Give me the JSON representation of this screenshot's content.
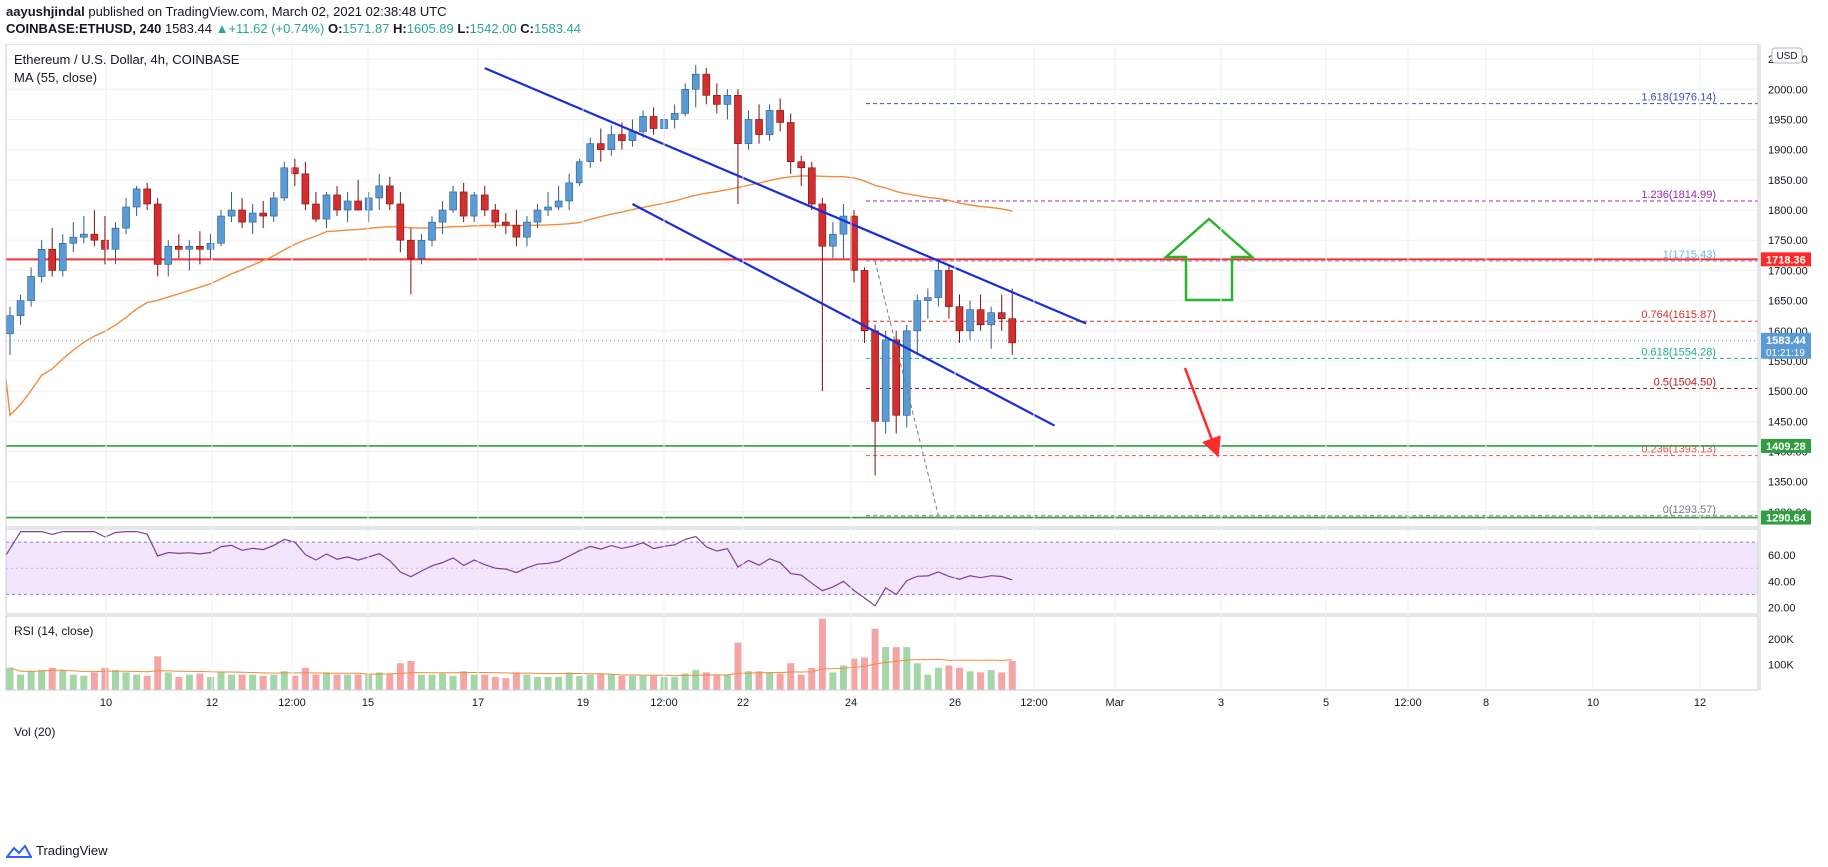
{
  "header": {
    "publisher": "aayushjindal",
    "published_text": "published on TradingView.com, March 02, 2021 02:38:48 UTC",
    "symbol": "COINBASE:ETHUSD, 240",
    "last": "1583.44",
    "change_up_icon": "triangle-up-icon",
    "change": "+11.62 (+0.74%)",
    "o_label": "O:",
    "o": "1571.87",
    "h_label": "H:",
    "h": "1605.89",
    "l_label": "L:",
    "l": "1542.00",
    "c_label": "C:",
    "c": "1583.44"
  },
  "legend": {
    "title": "Ethereum / U.S. Dollar, 4h, COINBASE",
    "ma": "MA (55, close)",
    "rsi": "RSI (14, close)",
    "vol": "Vol (20)"
  },
  "currency_badge": "USD",
  "footer": {
    "brand": "TradingView",
    "logo_icon": "tradingview-logo-icon"
  },
  "colors": {
    "bull": "#5b9bd5",
    "bear": "#d32f2f",
    "ma": "#f28c3a",
    "trend": "#1a2dd8",
    "resistance": "#ff2b2b",
    "support": "#2e9e3f",
    "rsi": "#7b3fa0",
    "vol_up": "#a5d6a7",
    "vol_down": "#f4a6a6"
  },
  "chart_data": [
    {
      "type": "candlestick",
      "title": "Ethereum / U.S. Dollar, 4h, COINBASE",
      "x_tick_labels": [
        "10",
        "12",
        "12:00",
        "15",
        "17",
        "19",
        "12:00",
        "22",
        "24",
        "26",
        "12:00",
        "Mar",
        "3",
        "5",
        "12:00",
        "8",
        "10",
        "12"
      ],
      "y_tick_labels": [
        1300,
        1350,
        1400,
        1450,
        1500,
        1550,
        1600,
        1650,
        1700,
        1750,
        1800,
        1850,
        1900,
        1950,
        2000,
        2050
      ],
      "ylim": [
        1275,
        2075
      ],
      "grid": true,
      "price_badges": [
        {
          "value": "1718.36",
          "color": "#ff2b2b"
        },
        {
          "value": "1583.44",
          "sub": "01:21:19",
          "color": "#5b9bd5"
        },
        {
          "value": "1409.28",
          "color": "#2e9e3f"
        },
        {
          "value": "1290.64",
          "color": "#2e9e3f"
        }
      ],
      "fib_levels": [
        {
          "label": "1.618(1976.14)",
          "value": 1976.14,
          "color": "#3f51b5"
        },
        {
          "label": "1.236(1814.99)",
          "value": 1814.99,
          "color": "#9c27b0"
        },
        {
          "label": "1(1715.43)",
          "value": 1715.43,
          "color": "#64b5f6"
        },
        {
          "label": "0.764(1615.87)",
          "value": 1615.87,
          "color": "#d32f2f"
        },
        {
          "label": "0.618(1554.28)",
          "value": 1554.28,
          "color": "#26a69a"
        },
        {
          "label": "0.5(1504.50)",
          "value": 1504.5,
          "color": "#b71c1c"
        },
        {
          "label": "0.236(1393.13)",
          "value": 1393.13,
          "color": "#ef5350"
        },
        {
          "label": "0(1293.57)",
          "value": 1293.57,
          "color": "#787b86"
        }
      ],
      "horizontal_lines": [
        {
          "name": "resistance",
          "value": 1718.36
        },
        {
          "name": "support",
          "value": 1409.28
        },
        {
          "name": "support-low",
          "value": 1290.64
        }
      ],
      "trendlines": [
        {
          "name": "upper-trendline",
          "from": [
            40,
            2035
          ],
          "to": [
            97,
            1612
          ]
        },
        {
          "name": "lower-trendline",
          "from": [
            54,
            1810
          ],
          "to": [
            94,
            1443
          ]
        }
      ],
      "candles": [
        [
          1595,
          1640,
          1560,
          1625
        ],
        [
          1625,
          1660,
          1610,
          1650
        ],
        [
          1650,
          1705,
          1640,
          1690
        ],
        [
          1690,
          1750,
          1680,
          1735
        ],
        [
          1735,
          1770,
          1690,
          1700
        ],
        [
          1700,
          1760,
          1690,
          1745
        ],
        [
          1745,
          1780,
          1730,
          1755
        ],
        [
          1755,
          1790,
          1745,
          1760
        ],
        [
          1760,
          1800,
          1740,
          1750
        ],
        [
          1750,
          1790,
          1710,
          1735
        ],
        [
          1735,
          1780,
          1710,
          1770
        ],
        [
          1770,
          1820,
          1760,
          1805
        ],
        [
          1805,
          1840,
          1790,
          1835
        ],
        [
          1835,
          1845,
          1800,
          1810
        ],
        [
          1810,
          1820,
          1690,
          1710
        ],
        [
          1710,
          1750,
          1690,
          1740
        ],
        [
          1740,
          1760,
          1720,
          1735
        ],
        [
          1735,
          1750,
          1700,
          1740
        ],
        [
          1740,
          1765,
          1710,
          1735
        ],
        [
          1735,
          1760,
          1720,
          1745
        ],
        [
          1745,
          1800,
          1740,
          1790
        ],
        [
          1790,
          1830,
          1780,
          1800
        ],
        [
          1800,
          1820,
          1770,
          1780
        ],
        [
          1780,
          1810,
          1760,
          1795
        ],
        [
          1795,
          1815,
          1770,
          1790
        ],
        [
          1790,
          1830,
          1780,
          1820
        ],
        [
          1820,
          1880,
          1815,
          1870
        ],
        [
          1870,
          1885,
          1840,
          1860
        ],
        [
          1860,
          1880,
          1800,
          1810
        ],
        [
          1810,
          1830,
          1780,
          1785
        ],
        [
          1785,
          1830,
          1770,
          1825
        ],
        [
          1825,
          1840,
          1790,
          1800
        ],
        [
          1800,
          1830,
          1780,
          1815
        ],
        [
          1815,
          1850,
          1800,
          1800
        ],
        [
          1800,
          1830,
          1780,
          1820
        ],
        [
          1820,
          1860,
          1800,
          1840
        ],
        [
          1840,
          1855,
          1800,
          1810
        ],
        [
          1810,
          1830,
          1730,
          1750
        ],
        [
          1750,
          1770,
          1660,
          1720
        ],
        [
          1720,
          1760,
          1710,
          1750
        ],
        [
          1750,
          1790,
          1740,
          1780
        ],
        [
          1780,
          1815,
          1760,
          1800
        ],
        [
          1800,
          1840,
          1795,
          1830
        ],
        [
          1830,
          1845,
          1780,
          1790
        ],
        [
          1790,
          1830,
          1780,
          1825
        ],
        [
          1825,
          1840,
          1790,
          1800
        ],
        [
          1800,
          1810,
          1770,
          1780
        ],
        [
          1780,
          1795,
          1760,
          1775
        ],
        [
          1775,
          1800,
          1740,
          1755
        ],
        [
          1755,
          1790,
          1740,
          1780
        ],
        [
          1780,
          1810,
          1770,
          1800
        ],
        [
          1800,
          1830,
          1790,
          1805
        ],
        [
          1805,
          1840,
          1800,
          1815
        ],
        [
          1815,
          1860,
          1800,
          1845
        ],
        [
          1845,
          1885,
          1840,
          1880
        ],
        [
          1880,
          1920,
          1870,
          1910
        ],
        [
          1910,
          1935,
          1880,
          1900
        ],
        [
          1900,
          1940,
          1890,
          1925
        ],
        [
          1925,
          1945,
          1900,
          1915
        ],
        [
          1915,
          1950,
          1905,
          1930
        ],
        [
          1930,
          1965,
          1920,
          1955
        ],
        [
          1955,
          1970,
          1925,
          1935
        ],
        [
          1935,
          1960,
          1920,
          1950
        ],
        [
          1950,
          1975,
          1935,
          1960
        ],
        [
          1960,
          2010,
          1955,
          2000
        ],
        [
          2000,
          2040,
          1970,
          2025
        ],
        [
          2025,
          2035,
          1975,
          1990
        ],
        [
          1990,
          2010,
          1960,
          1975
        ],
        [
          1975,
          2000,
          1950,
          1990
        ],
        [
          1990,
          2000,
          1810,
          1910
        ],
        [
          1910,
          1965,
          1900,
          1950
        ],
        [
          1950,
          1975,
          1910,
          1925
        ],
        [
          1925,
          1975,
          1915,
          1965
        ],
        [
          1965,
          1985,
          1930,
          1945
        ],
        [
          1945,
          1960,
          1860,
          1880
        ],
        [
          1880,
          1890,
          1840,
          1870
        ],
        [
          1870,
          1880,
          1800,
          1810
        ],
        [
          1810,
          1820,
          1500,
          1740
        ],
        [
          1740,
          1780,
          1720,
          1760
        ],
        [
          1760,
          1810,
          1720,
          1790
        ],
        [
          1790,
          1800,
          1680,
          1700
        ],
        [
          1700,
          1705,
          1580,
          1600
        ],
        [
          1600,
          1610,
          1360,
          1450
        ],
        [
          1450,
          1600,
          1430,
          1585
        ],
        [
          1585,
          1600,
          1430,
          1460
        ],
        [
          1460,
          1610,
          1440,
          1600
        ],
        [
          1600,
          1660,
          1560,
          1650
        ],
        [
          1650,
          1670,
          1620,
          1655
        ],
        [
          1655,
          1720,
          1640,
          1700
        ],
        [
          1700,
          1710,
          1620,
          1640
        ],
        [
          1640,
          1660,
          1580,
          1600
        ],
        [
          1600,
          1650,
          1585,
          1635
        ],
        [
          1635,
          1660,
          1600,
          1610
        ],
        [
          1610,
          1640,
          1570,
          1630
        ],
        [
          1630,
          1660,
          1600,
          1620
        ],
        [
          1620,
          1670,
          1560,
          1580
        ]
      ]
    },
    {
      "type": "line",
      "title": "RSI (14, close)",
      "y_tick_labels": [
        20,
        40,
        60
      ],
      "ylim": [
        15,
        80
      ],
      "band": [
        30,
        70
      ]
    },
    {
      "type": "bar",
      "title": "Vol (20)",
      "y_tick_labels": [
        "100K",
        "200K"
      ],
      "ylim": [
        0,
        290000
      ]
    }
  ]
}
